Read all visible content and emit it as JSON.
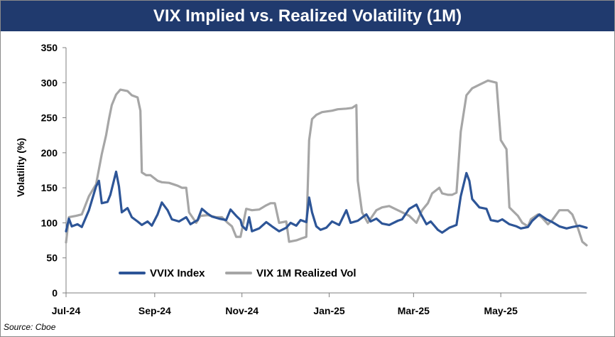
{
  "chart_data": {
    "type": "line",
    "title": "VIX Implied vs. Realized Volatility (1M)",
    "ylabel": "Volatility (%)",
    "xlabel": "",
    "ylim": [
      0,
      350
    ],
    "yticks": [
      0,
      50,
      100,
      150,
      200,
      250,
      300,
      350
    ],
    "xlim": [
      "2024-07-01",
      "2025-06-30"
    ],
    "xticks": [
      {
        "label": "Jul-24",
        "date": "2024-07-01"
      },
      {
        "label": "Sep-24",
        "date": "2024-09-01"
      },
      {
        "label": "Nov-24",
        "date": "2024-11-01"
      },
      {
        "label": "Jan-25",
        "date": "2025-01-01"
      },
      {
        "label": "Mar-25",
        "date": "2025-03-01"
      },
      {
        "label": "May-25",
        "date": "2025-05-01"
      }
    ],
    "grid": false,
    "legend_position": "bottom-left",
    "series": [
      {
        "name": "VVIX Index",
        "color": "#2d5597",
        "points": [
          [
            "2024-07-01",
            88
          ],
          [
            "2024-07-03",
            106
          ],
          [
            "2024-07-05",
            95
          ],
          [
            "2024-07-09",
            98
          ],
          [
            "2024-07-12",
            94
          ],
          [
            "2024-07-17",
            118
          ],
          [
            "2024-07-22",
            152
          ],
          [
            "2024-07-24",
            160
          ],
          [
            "2024-07-26",
            128
          ],
          [
            "2024-07-30",
            130
          ],
          [
            "2024-08-01",
            140
          ],
          [
            "2024-08-05",
            173
          ],
          [
            "2024-08-07",
            152
          ],
          [
            "2024-08-09",
            115
          ],
          [
            "2024-08-13",
            121
          ],
          [
            "2024-08-16",
            108
          ],
          [
            "2024-08-20",
            102
          ],
          [
            "2024-08-23",
            97
          ],
          [
            "2024-08-27",
            102
          ],
          [
            "2024-08-30",
            96
          ],
          [
            "2024-09-03",
            112
          ],
          [
            "2024-09-06",
            129
          ],
          [
            "2024-09-10",
            118
          ],
          [
            "2024-09-13",
            105
          ],
          [
            "2024-09-18",
            102
          ],
          [
            "2024-09-23",
            108
          ],
          [
            "2024-09-26",
            98
          ],
          [
            "2024-10-01",
            104
          ],
          [
            "2024-10-04",
            120
          ],
          [
            "2024-10-08",
            113
          ],
          [
            "2024-10-11",
            109
          ],
          [
            "2024-10-16",
            106
          ],
          [
            "2024-10-21",
            104
          ],
          [
            "2024-10-24",
            119
          ],
          [
            "2024-10-28",
            110
          ],
          [
            "2024-10-31",
            104
          ],
          [
            "2024-11-01",
            96
          ],
          [
            "2024-11-04",
            90
          ],
          [
            "2024-11-06",
            108
          ],
          [
            "2024-11-08",
            88
          ],
          [
            "2024-11-13",
            92
          ],
          [
            "2024-11-18",
            101
          ],
          [
            "2024-11-22",
            95
          ],
          [
            "2024-11-27",
            88
          ],
          [
            "2024-12-02",
            93
          ],
          [
            "2024-12-05",
            100
          ],
          [
            "2024-12-09",
            96
          ],
          [
            "2024-12-12",
            104
          ],
          [
            "2024-12-16",
            101
          ],
          [
            "2024-12-18",
            136
          ],
          [
            "2024-12-20",
            115
          ],
          [
            "2024-12-23",
            95
          ],
          [
            "2024-12-26",
            90
          ],
          [
            "2024-12-30",
            93
          ],
          [
            "2025-01-03",
            102
          ],
          [
            "2025-01-08",
            97
          ],
          [
            "2025-01-13",
            118
          ],
          [
            "2025-01-16",
            100
          ],
          [
            "2025-01-21",
            103
          ],
          [
            "2025-01-27",
            112
          ],
          [
            "2025-01-30",
            102
          ],
          [
            "2025-02-03",
            106
          ],
          [
            "2025-02-07",
            99
          ],
          [
            "2025-02-12",
            97
          ],
          [
            "2025-02-18",
            103
          ],
          [
            "2025-02-21",
            105
          ],
          [
            "2025-02-26",
            120
          ],
          [
            "2025-03-03",
            126
          ],
          [
            "2025-03-06",
            113
          ],
          [
            "2025-03-10",
            98
          ],
          [
            "2025-03-13",
            102
          ],
          [
            "2025-03-18",
            90
          ],
          [
            "2025-03-21",
            86
          ],
          [
            "2025-03-26",
            93
          ],
          [
            "2025-03-31",
            97
          ],
          [
            "2025-04-03",
            138
          ],
          [
            "2025-04-07",
            171
          ],
          [
            "2025-04-09",
            160
          ],
          [
            "2025-04-11",
            134
          ],
          [
            "2025-04-16",
            122
          ],
          [
            "2025-04-21",
            120
          ],
          [
            "2025-04-24",
            104
          ],
          [
            "2025-04-29",
            102
          ],
          [
            "2025-05-02",
            105
          ],
          [
            "2025-05-07",
            98
          ],
          [
            "2025-05-12",
            95
          ],
          [
            "2025-05-15",
            92
          ],
          [
            "2025-05-20",
            94
          ],
          [
            "2025-05-23",
            103
          ],
          [
            "2025-05-28",
            112
          ],
          [
            "2025-06-02",
            105
          ],
          [
            "2025-06-06",
            101
          ],
          [
            "2025-06-11",
            95
          ],
          [
            "2025-06-16",
            92
          ],
          [
            "2025-06-20",
            94
          ],
          [
            "2025-06-25",
            96
          ],
          [
            "2025-06-30",
            93
          ]
        ]
      },
      {
        "name": "VIX 1M Realized Vol",
        "color": "#a6a6a6",
        "points": [
          [
            "2024-07-01",
            72
          ],
          [
            "2024-07-03",
            108
          ],
          [
            "2024-07-08",
            110
          ],
          [
            "2024-07-12",
            112
          ],
          [
            "2024-07-17",
            138
          ],
          [
            "2024-07-22",
            155
          ],
          [
            "2024-07-26",
            198
          ],
          [
            "2024-07-29",
            225
          ],
          [
            "2024-07-31",
            248
          ],
          [
            "2024-08-02",
            268
          ],
          [
            "2024-08-05",
            283
          ],
          [
            "2024-08-08",
            290
          ],
          [
            "2024-08-13",
            288
          ],
          [
            "2024-08-16",
            282
          ],
          [
            "2024-08-20",
            279
          ],
          [
            "2024-08-22",
            260
          ],
          [
            "2024-08-23",
            172
          ],
          [
            "2024-08-26",
            168
          ],
          [
            "2024-08-29",
            168
          ],
          [
            "2024-09-03",
            160
          ],
          [
            "2024-09-06",
            158
          ],
          [
            "2024-09-11",
            157
          ],
          [
            "2024-09-17",
            153
          ],
          [
            "2024-09-20",
            150
          ],
          [
            "2024-09-23",
            150
          ],
          [
            "2024-09-25",
            115
          ],
          [
            "2024-09-30",
            100
          ],
          [
            "2024-10-03",
            110
          ],
          [
            "2024-10-08",
            111
          ],
          [
            "2024-10-14",
            108
          ],
          [
            "2024-10-18",
            108
          ],
          [
            "2024-10-22",
            100
          ],
          [
            "2024-10-25",
            95
          ],
          [
            "2024-10-28",
            80
          ],
          [
            "2024-10-31",
            80
          ],
          [
            "2024-11-04",
            120
          ],
          [
            "2024-11-08",
            118
          ],
          [
            "2024-11-13",
            119
          ],
          [
            "2024-11-18",
            125
          ],
          [
            "2024-11-21",
            128
          ],
          [
            "2024-11-24",
            128
          ],
          [
            "2024-11-27",
            100
          ],
          [
            "2024-12-02",
            102
          ],
          [
            "2024-12-04",
            73
          ],
          [
            "2024-12-09",
            75
          ],
          [
            "2024-12-13",
            78
          ],
          [
            "2024-12-16",
            80
          ],
          [
            "2024-12-18",
            218
          ],
          [
            "2024-12-20",
            248
          ],
          [
            "2024-12-23",
            254
          ],
          [
            "2024-12-27",
            258
          ],
          [
            "2025-01-03",
            260
          ],
          [
            "2025-01-07",
            262
          ],
          [
            "2025-01-13",
            263
          ],
          [
            "2025-01-17",
            264
          ],
          [
            "2025-01-20",
            268
          ],
          [
            "2025-01-21",
            160
          ],
          [
            "2025-01-24",
            115
          ],
          [
            "2025-01-28",
            100
          ],
          [
            "2025-02-03",
            118
          ],
          [
            "2025-02-07",
            122
          ],
          [
            "2025-02-12",
            124
          ],
          [
            "2025-02-18",
            118
          ],
          [
            "2025-02-21",
            115
          ],
          [
            "2025-02-26",
            110
          ],
          [
            "2025-03-03",
            100
          ],
          [
            "2025-03-07",
            118
          ],
          [
            "2025-03-11",
            128
          ],
          [
            "2025-03-14",
            142
          ],
          [
            "2025-03-19",
            150
          ],
          [
            "2025-03-21",
            142
          ],
          [
            "2025-03-25",
            140
          ],
          [
            "2025-03-28",
            140
          ],
          [
            "2025-03-31",
            143
          ],
          [
            "2025-04-03",
            230
          ],
          [
            "2025-04-07",
            282
          ],
          [
            "2025-04-11",
            292
          ],
          [
            "2025-04-16",
            297
          ],
          [
            "2025-04-22",
            303
          ],
          [
            "2025-04-28",
            300
          ],
          [
            "2025-05-01",
            218
          ],
          [
            "2025-05-05",
            205
          ],
          [
            "2025-05-07",
            122
          ],
          [
            "2025-05-09",
            118
          ],
          [
            "2025-05-13",
            110
          ],
          [
            "2025-05-16",
            100
          ],
          [
            "2025-05-20",
            95
          ],
          [
            "2025-05-22",
            105
          ],
          [
            "2025-05-27",
            112
          ],
          [
            "2025-05-30",
            107
          ],
          [
            "2025-06-03",
            98
          ],
          [
            "2025-06-06",
            104
          ],
          [
            "2025-06-11",
            118
          ],
          [
            "2025-06-17",
            118
          ],
          [
            "2025-06-20",
            112
          ],
          [
            "2025-06-24",
            92
          ],
          [
            "2025-06-27",
            73
          ],
          [
            "2025-06-30",
            68
          ]
        ]
      }
    ]
  },
  "footer": {
    "source": "Source: Cboe"
  }
}
